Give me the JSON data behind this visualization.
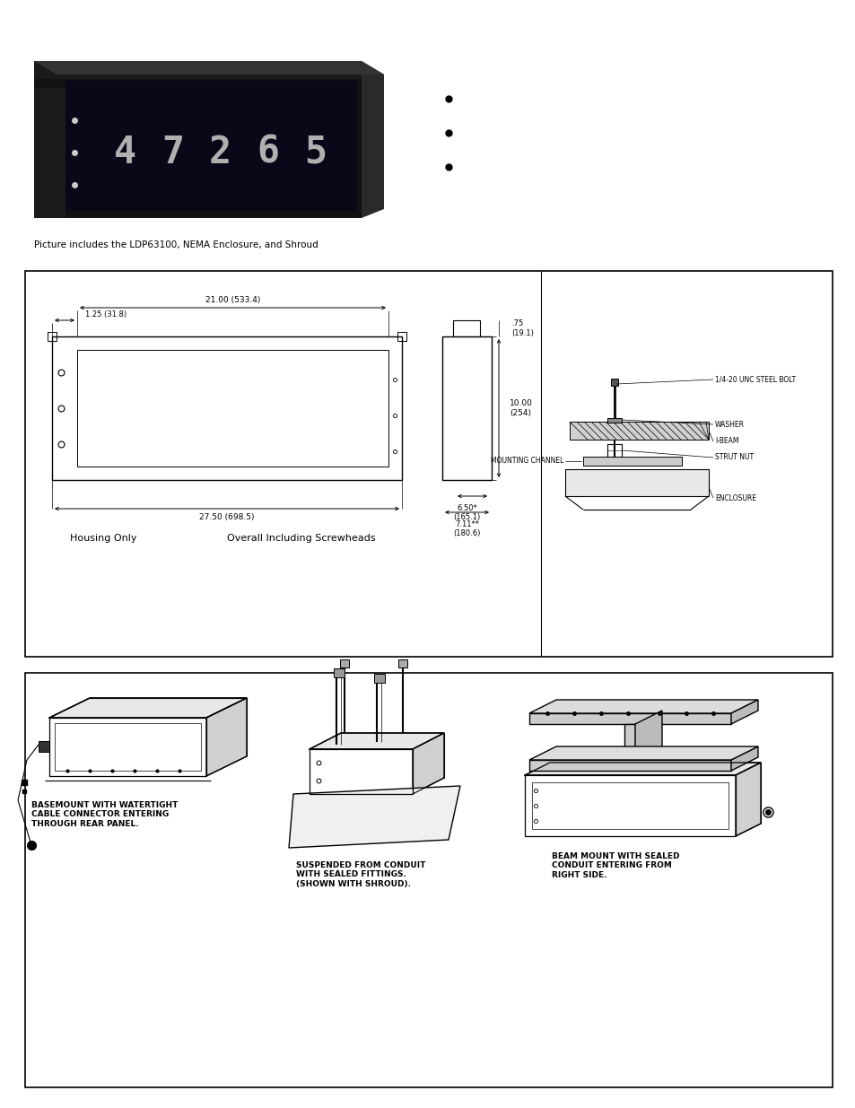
{
  "bg_color": "#ffffff",
  "caption_photo": "Picture includes the LDP63100, NEMA Enclosure, and Shroud",
  "dim_label_1": "21.00 (533.4)",
  "dim_label_2": "1.25 (31.8)",
  "dim_label_3": ".75\n(19.1)",
  "dim_label_4": "10.00\n(254)",
  "dim_label_5": "6.50*\n(165.1)",
  "dim_label_6": "7.11**\n(180.6)",
  "dim_label_7": "27.50 (698.5)",
  "label_housing": "Housing Only",
  "label_overall": "Overall Including Screwheads",
  "beam_labels": [
    "1/4-20 UNC STEEL BOLT",
    "WASHER",
    "I-BEAM",
    "STRUT NUT",
    "MOUNTING CHANNEL",
    "ENCLOSURE"
  ],
  "inst_label_1": "BASEMOUNT WITH WATERTIGHT\nCABLE CONNECTOR ENTERING\nTHROUGH REAR PANEL.",
  "inst_label_2": "SUSPENDED FROM CONDUIT\nWITH SEALED FITTINGS.\n(SHOWN WITH SHROUD).",
  "inst_label_3": "BEAM MOUNT WITH SEALED\nCONDUIT ENTERING FROM\nRIGHT SIDE.",
  "line_color": "#000000",
  "text_color": "#000000"
}
